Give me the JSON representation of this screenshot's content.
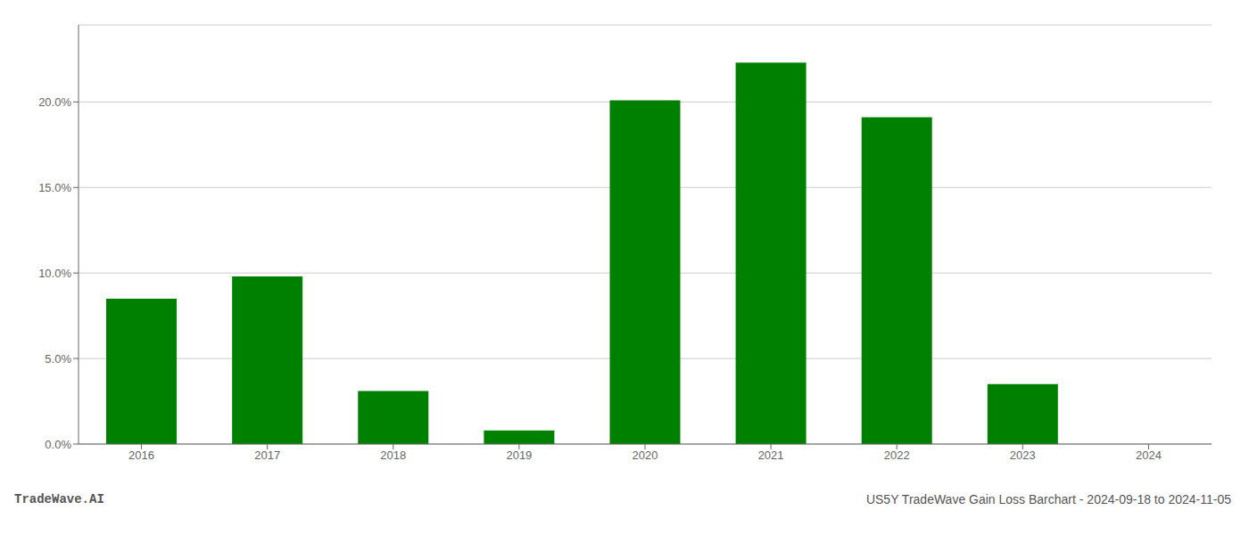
{
  "chart_data": {
    "type": "bar",
    "categories": [
      "2016",
      "2017",
      "2018",
      "2019",
      "2020",
      "2021",
      "2022",
      "2023",
      "2024"
    ],
    "values": [
      0.085,
      0.098,
      0.031,
      0.008,
      0.201,
      0.223,
      0.191,
      0.035,
      0.0
    ],
    "color": "#008000",
    "ylim": [
      0,
      0.245
    ],
    "yticks": [
      {
        "value": 0.0,
        "label": "0.0%"
      },
      {
        "value": 0.05,
        "label": "5.0%"
      },
      {
        "value": 0.1,
        "label": "10.0%"
      },
      {
        "value": 0.15,
        "label": "15.0%"
      },
      {
        "value": 0.2,
        "label": "20.0%"
      }
    ],
    "grid": true,
    "annotations": [
      "TradeWave.AI",
      "US5Y TradeWave Gain Loss Barchart - 2024-09-18 to 2024-11-05"
    ]
  }
}
